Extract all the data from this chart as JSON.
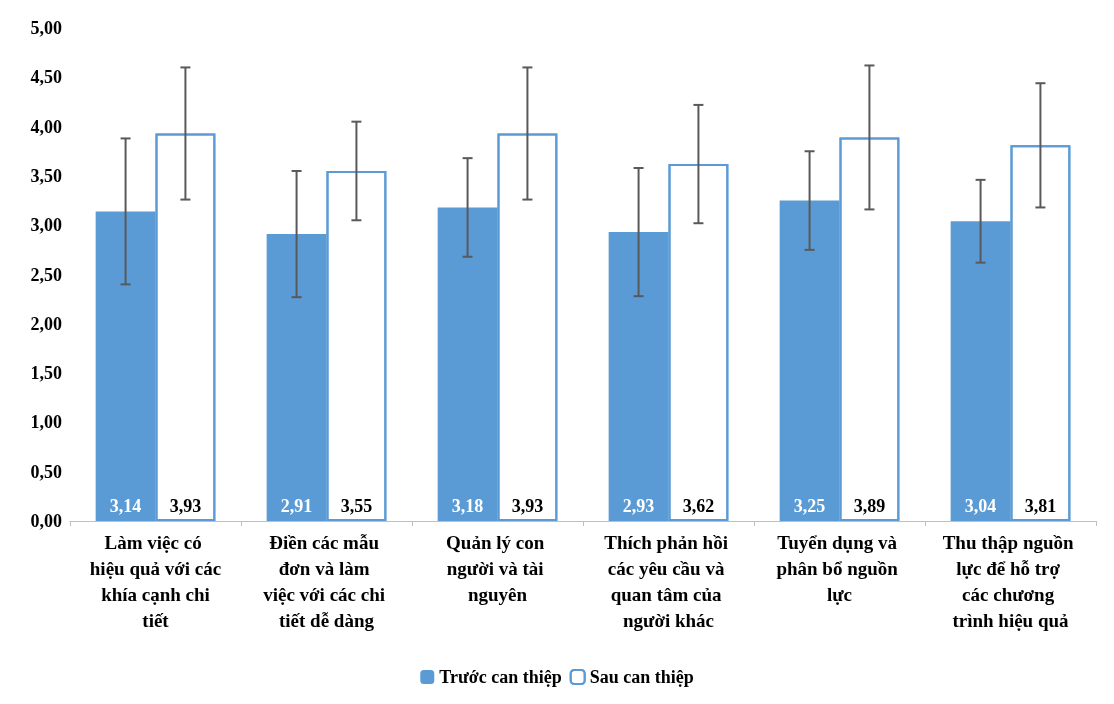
{
  "chart_data": {
    "type": "bar",
    "categories": [
      "Làm việc có hiệu quả với các khía cạnh chi tiết",
      "Điền các mẫu đơn và làm việc với các chi tiết dễ dàng",
      "Quản lý con người và tài nguyên",
      "Thích phản hồi các yêu cầu và quan tâm của người khác",
      "Tuyển dụng và phân bổ nguồn lực",
      "Thu thập nguồn lực để hỗ trợ các chương trình hiệu quả"
    ],
    "series": [
      {
        "name": "Trước can thiệp",
        "color": "#5b9bd5",
        "values": [
          3.14,
          2.91,
          3.18,
          2.93,
          3.25,
          3.04
        ],
        "errors": [
          0.74,
          0.64,
          0.5,
          0.65,
          0.5,
          0.42
        ],
        "value_labels": [
          "3,14",
          "2,91",
          "3,18",
          "2,93",
          "3,25",
          "3,04"
        ]
      },
      {
        "name": "Sau can thiệp",
        "color": "#5b9bd5",
        "values": [
          3.93,
          3.55,
          3.93,
          3.62,
          3.89,
          3.81
        ],
        "errors": [
          0.67,
          0.5,
          0.67,
          0.6,
          0.73,
          0.63
        ],
        "value_labels": [
          "3,93",
          "3,55",
          "3,93",
          "3,62",
          "3,89",
          "3,81"
        ]
      }
    ],
    "ylim": [
      0,
      5
    ],
    "yticks": [
      {
        "value": 0,
        "label": "0,00"
      },
      {
        "value": 0.5,
        "label": "0,50"
      },
      {
        "value": 1,
        "label": "1,00"
      },
      {
        "value": 1.5,
        "label": "1,50"
      },
      {
        "value": 2,
        "label": "2,00"
      },
      {
        "value": 2.5,
        "label": "2,50"
      },
      {
        "value": 3,
        "label": "3,00"
      },
      {
        "value": 3.5,
        "label": "3,50"
      },
      {
        "value": 4,
        "label": "4,00"
      },
      {
        "value": 4.5,
        "label": "4,50"
      },
      {
        "value": 5,
        "label": "5,00"
      }
    ],
    "grid": false,
    "legend": "bottom"
  }
}
